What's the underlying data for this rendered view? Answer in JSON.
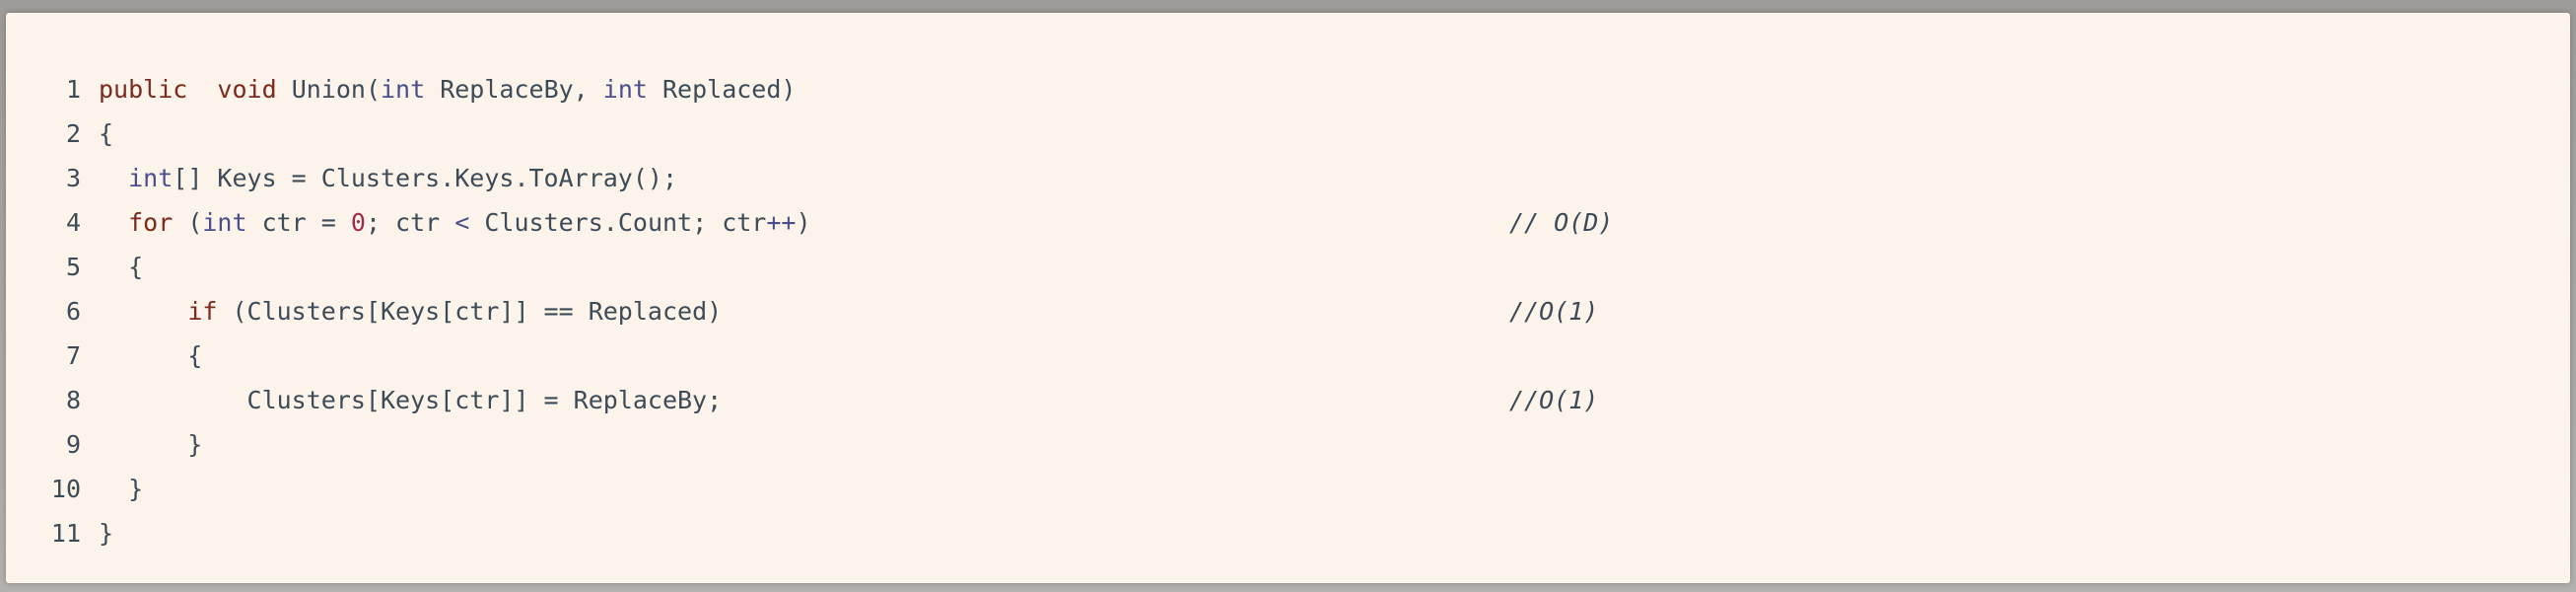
{
  "colors": {
    "panel_background": "#fcf3ea",
    "keyword": "#7b2a1c",
    "type": "#4a4f8c",
    "number": "#9c2b4c",
    "text": "#3d4b57"
  },
  "code": {
    "lines": [
      {
        "number": "1",
        "tokens": [
          {
            "kind": "kw",
            "text": "public"
          },
          {
            "kind": "plain",
            "text": "  "
          },
          {
            "kind": "kw",
            "text": "void"
          },
          {
            "kind": "plain",
            "text": " Union("
          },
          {
            "kind": "type",
            "text": "int"
          },
          {
            "kind": "plain",
            "text": " ReplaceBy, "
          },
          {
            "kind": "type",
            "text": "int"
          },
          {
            "kind": "plain",
            "text": " Replaced)"
          }
        ],
        "comment": ""
      },
      {
        "number": "2",
        "tokens": [
          {
            "kind": "plain",
            "text": "{"
          }
        ],
        "comment": ""
      },
      {
        "number": "3",
        "tokens": [
          {
            "kind": "plain",
            "text": "  "
          },
          {
            "kind": "type",
            "text": "int"
          },
          {
            "kind": "plain",
            "text": "[] Keys = Clusters.Keys.ToArray();"
          }
        ],
        "comment": ""
      },
      {
        "number": "4",
        "tokens": [
          {
            "kind": "plain",
            "text": "  "
          },
          {
            "kind": "kw",
            "text": "for"
          },
          {
            "kind": "plain",
            "text": " ("
          },
          {
            "kind": "type",
            "text": "int"
          },
          {
            "kind": "plain",
            "text": " ctr = "
          },
          {
            "kind": "num",
            "text": "0"
          },
          {
            "kind": "plain",
            "text": "; ctr "
          },
          {
            "kind": "op",
            "text": "<"
          },
          {
            "kind": "plain",
            "text": " Clusters.Count; ctr"
          },
          {
            "kind": "op",
            "text": "++"
          },
          {
            "kind": "plain",
            "text": ")"
          }
        ],
        "comment": "// O(D)"
      },
      {
        "number": "5",
        "tokens": [
          {
            "kind": "plain",
            "text": "  {"
          }
        ],
        "comment": ""
      },
      {
        "number": "6",
        "tokens": [
          {
            "kind": "plain",
            "text": "      "
          },
          {
            "kind": "kw",
            "text": "if"
          },
          {
            "kind": "plain",
            "text": " (Clusters[Keys[ctr]] == Replaced)"
          }
        ],
        "comment": "//O(1)"
      },
      {
        "number": "7",
        "tokens": [
          {
            "kind": "plain",
            "text": "      {"
          }
        ],
        "comment": ""
      },
      {
        "number": "8",
        "tokens": [
          {
            "kind": "plain",
            "text": "          Clusters[Keys[ctr]] = ReplaceBy;"
          }
        ],
        "comment": "//O(1)"
      },
      {
        "number": "9",
        "tokens": [
          {
            "kind": "plain",
            "text": "      }"
          }
        ],
        "comment": ""
      },
      {
        "number": "10",
        "tokens": [
          {
            "kind": "plain",
            "text": "  }"
          }
        ],
        "comment": ""
      },
      {
        "number": "11",
        "tokens": [
          {
            "kind": "plain",
            "text": "}"
          }
        ],
        "comment": ""
      }
    ]
  }
}
